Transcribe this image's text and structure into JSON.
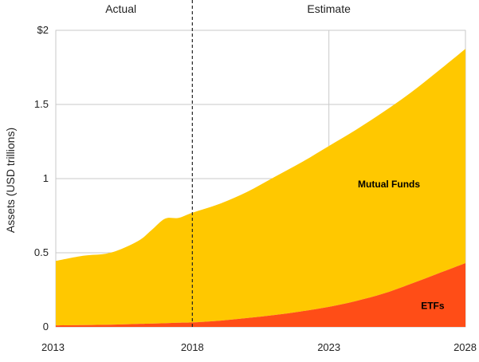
{
  "chart_data": {
    "type": "area",
    "stacked": true,
    "ylabel": "Assets (USD trillions)",
    "xlabel": "",
    "title": "",
    "ylim": [
      0,
      2
    ],
    "xlim": [
      2013,
      2028
    ],
    "x_ticks": [
      {
        "value": 2013,
        "label": "2013"
      },
      {
        "value": 2018,
        "label": "2018"
      },
      {
        "value": 2023,
        "label": "2023"
      },
      {
        "value": 2028,
        "label": "2028"
      }
    ],
    "y_ticks": [
      {
        "value": 0,
        "label": "0"
      },
      {
        "value": 0.5,
        "label": "0.5"
      },
      {
        "value": 1,
        "label": "1"
      },
      {
        "value": 1.5,
        "label": "1.5"
      },
      {
        "value": 2,
        "label": "$2"
      }
    ],
    "sections": [
      {
        "label": "Actual",
        "from": 2013,
        "to": 2018
      },
      {
        "label": "Estimate",
        "from": 2018,
        "to": 2028
      }
    ],
    "divider_x": 2018,
    "grid": true,
    "x": [
      2013,
      2014,
      2015,
      2016,
      2016.5,
      2017,
      2017.5,
      2018,
      2019,
      2020,
      2021,
      2022,
      2023,
      2024,
      2025,
      2026,
      2027,
      2028
    ],
    "series": [
      {
        "name": "ETFs",
        "color": "#ff4d17",
        "values": [
          0.01,
          0.012,
          0.015,
          0.02,
          0.022,
          0.025,
          0.028,
          0.03,
          0.042,
          0.06,
          0.08,
          0.105,
          0.135,
          0.175,
          0.225,
          0.29,
          0.36,
          0.43
        ]
      },
      {
        "name": "Mutual Funds",
        "color": "#ffc800",
        "values": [
          0.435,
          0.468,
          0.485,
          0.558,
          0.63,
          0.705,
          0.707,
          0.74,
          0.788,
          0.85,
          0.93,
          1.005,
          1.085,
          1.155,
          1.225,
          1.29,
          1.365,
          1.445
        ]
      }
    ],
    "series_labels": [
      {
        "series": "Mutual Funds",
        "x": 2025.2,
        "y": 0.94
      },
      {
        "series": "ETFs",
        "x": 2026.8,
        "y": 0.12
      }
    ],
    "grid_color": "#c9c9c9",
    "plot_border_color": "#d9d9d9"
  }
}
